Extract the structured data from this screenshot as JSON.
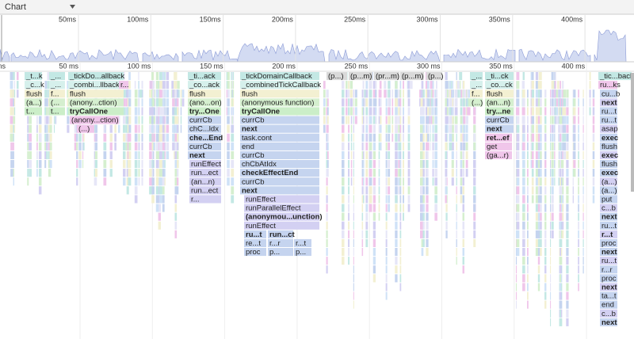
{
  "toolbar": {
    "title": "Chart"
  },
  "overview": {
    "ticks": [
      "50ms",
      "100ms",
      "150ms",
      "200ms",
      "250ms",
      "300ms",
      "350ms",
      "400ms"
    ]
  },
  "ruler": {
    "ticks": [
      "ms",
      "50 ms",
      "100 ms",
      "150 ms",
      "200 ms",
      "250 ms",
      "300 ms",
      "350 ms",
      "400 ms"
    ]
  },
  "flame": {
    "stacks": [
      {
        "frames": [
          "_t...k",
          "_c...k",
          "flush",
          "(a...)",
          "t..."
        ]
      },
      {
        "frames": [
          "_...",
          "_...",
          "f...",
          "(...",
          "t..."
        ]
      },
      {
        "frames": [
          "_tickDo...allback",
          "_combi...llback",
          "flush",
          "(anony...ction)",
          "tryCallOne"
        ]
      },
      {
        "frames": [
          "(anony...ction)"
        ]
      },
      {
        "frames": [
          "(...)"
        ]
      },
      {
        "frames": [
          "r..."
        ]
      },
      {
        "frames": [
          "_ti...ack",
          "_co...ack",
          "flush",
          "(ano...on)",
          "try...One",
          "currCb",
          "chC...ldx",
          "che...End",
          "currCb",
          "next"
        ]
      },
      {
        "frames": [
          "runEffect",
          "run...ect",
          "(an...n)",
          "run...ect",
          "r..."
        ]
      },
      {
        "frames": [
          "_tickDomainCallback",
          "_combinedTickCallback",
          "flush",
          "(anonymous function)",
          "tryCallOne",
          "currCb",
          "next",
          "task.cont",
          "end",
          "currCb",
          "chCbAtIdx",
          "checkEffectEnd",
          "currCb",
          "next"
        ]
      },
      {
        "frames": [
          "runEffect",
          "runParallelEffect",
          "(anonymou...unction)",
          "runEffect"
        ]
      },
      {
        "frames": [
          "ru...t",
          "re...t",
          "proc"
        ]
      },
      {
        "frames": [
          "run...ct",
          "r...r",
          "p..."
        ]
      },
      {
        "frames": [
          "r...t",
          "p..."
        ]
      },
      {
        "frames": [
          "_...",
          "_...",
          "f...",
          "(...)"
        ]
      },
      {
        "frames": [
          "_ti...ck",
          "_co...ck",
          "flush",
          "(an...n)",
          "try...ne",
          "currCb",
          "next"
        ]
      },
      {
        "frames": [
          "ret...ef",
          "get",
          "(ga...r)"
        ]
      },
      {
        "frames": [
          "_tic...back"
        ]
      },
      {
        "frames": [
          "ru...ks"
        ]
      },
      {
        "frames": [
          "cu...b",
          "next",
          "ru...t",
          "ru...t",
          "asap",
          "exec",
          "flush",
          "exec",
          "flush",
          "exec",
          "(a...)",
          "(a...)",
          "put",
          "c...b",
          "next",
          "ru...t",
          "r...t",
          "proc",
          "next",
          "ru...t",
          "r...r",
          "proc",
          "next",
          "ta...t",
          "end",
          "c...b",
          "next"
        ]
      }
    ],
    "gray_frames": [
      "(p...)",
      "(p...m)",
      "(pr...m)",
      "(p...m)",
      "(p...)"
    ]
  }
}
